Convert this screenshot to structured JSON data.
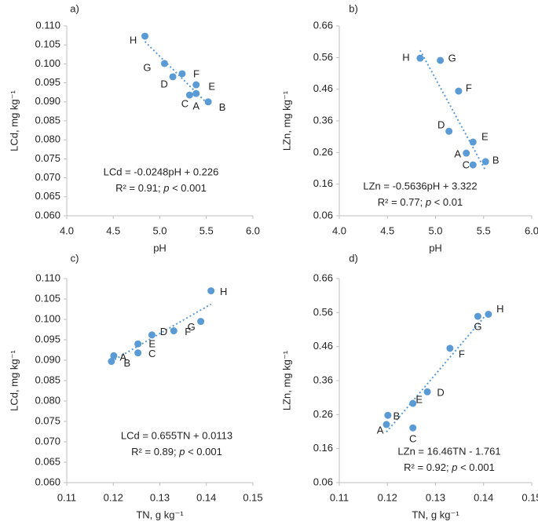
{
  "chart_data": [
    {
      "type": "scatter",
      "panel_label": "a)",
      "x_label": "pH",
      "y_label": "LCd, mg kg⁻¹",
      "color": "#5b9bd5",
      "trendline": true,
      "xlim": [
        4,
        6
      ],
      "xticks": [
        {
          "value": 4,
          "label": "4.0"
        },
        4.5,
        {
          "value": 5,
          "label": "5.0"
        },
        5.5,
        {
          "value": 6,
          "label": "6.0"
        }
      ],
      "ylim": [
        0.06,
        0.11
      ],
      "yticks": [
        {
          "value": 0.06,
          "label": "0.060"
        },
        0.065,
        {
          "value": 0.07,
          "label": "0.070"
        },
        0.075,
        {
          "value": 0.08,
          "label": "0.080"
        },
        0.085,
        {
          "value": 0.09,
          "label": "0.090"
        },
        0.095,
        {
          "value": 0.1,
          "label": "0.100"
        },
        0.105,
        {
          "value": 0.11,
          "label": "0.110"
        }
      ],
      "labels": [
        "H",
        "G",
        "D",
        "F",
        "E",
        "C",
        "A",
        "B"
      ],
      "x": [
        4.84,
        5.05,
        5.14,
        5.24,
        5.39,
        5.32,
        5.39,
        5.52
      ],
      "values": [
        0.1073,
        0.1001,
        0.0966,
        0.0974,
        0.0945,
        0.0918,
        0.0922,
        0.09
      ],
      "equation": "LCd = -0.0248pH + 0.226",
      "r2_text": "R² = 0.91; ",
      "p_text": "p",
      "p_rest": " < 0.001"
    },
    {
      "type": "scatter",
      "panel_label": "b)",
      "x_label": "pH",
      "y_label": "LZn, mg kg⁻¹",
      "color": "#5b9bd5",
      "trendline": true,
      "xlim": [
        4,
        6
      ],
      "xticks": [
        {
          "value": 4,
          "label": "4.0"
        },
        4.5,
        {
          "value": 5,
          "label": "5.0"
        },
        5.5,
        {
          "value": 6,
          "label": "6.0"
        }
      ],
      "ylim": [
        0.06,
        0.66
      ],
      "yticks": [
        0.06,
        0.16,
        0.26,
        0.36,
        0.46,
        0.56,
        0.66
      ],
      "labels": [
        "H",
        "G",
        "F",
        "D",
        "E",
        "A",
        "C",
        "B"
      ],
      "x": [
        4.84,
        5.05,
        5.24,
        5.14,
        5.39,
        5.32,
        5.39,
        5.52
      ],
      "values": [
        0.558,
        0.551,
        0.454,
        0.327,
        0.293,
        0.258,
        0.221,
        0.231
      ],
      "equation": "LZn = -0.5636pH + 3.322",
      "r2_text": "R² = 0.77; ",
      "p_text": "p",
      "p_rest": " < 0.01"
    },
    {
      "type": "scatter",
      "panel_label": "c)",
      "x_label": "TN, g kg⁻¹",
      "y_label": "LCd, mg kg⁻¹",
      "color": "#5b9bd5",
      "trendline": true,
      "xlim": [
        0.11,
        0.15
      ],
      "xticks": [
        0.11,
        0.12,
        0.13,
        0.14,
        0.15
      ],
      "ylim": [
        0.06,
        0.11
      ],
      "yticks": [
        {
          "value": 0.06,
          "label": "0.060"
        },
        0.065,
        {
          "value": 0.07,
          "label": "0.070"
        },
        0.075,
        {
          "value": 0.08,
          "label": "0.080"
        },
        0.085,
        {
          "value": 0.09,
          "label": "0.090"
        },
        0.095,
        {
          "value": 0.1,
          "label": "0.100"
        },
        0.105,
        {
          "value": 0.11,
          "label": "0.110"
        }
      ],
      "labels": [
        "H",
        "G",
        "F",
        "D",
        "E",
        "C",
        "A",
        "B"
      ],
      "x": [
        0.141,
        0.1388,
        0.133,
        0.1283,
        0.1253,
        0.1253,
        0.1201,
        0.1196
      ],
      "values": [
        0.107,
        0.0995,
        0.0972,
        0.0962,
        0.094,
        0.0918,
        0.0911,
        0.0897
      ],
      "equation": "LCd = 0.655TN + 0.0113",
      "r2_text": "R² = 0.89; ",
      "p_text": "p",
      "p_rest": " < 0.001"
    },
    {
      "type": "scatter",
      "panel_label": "d)",
      "x_label": "TN, g kg⁻¹",
      "y_label": "LZn, mg kg⁻¹",
      "color": "#5b9bd5",
      "trendline": true,
      "xlim": [
        0.11,
        0.15
      ],
      "xticks": [
        0.11,
        0.12,
        0.13,
        0.14,
        0.15
      ],
      "ylim": [
        0.06,
        0.66
      ],
      "yticks": [
        0.06,
        0.16,
        0.26,
        0.36,
        0.46,
        0.56,
        0.66
      ],
      "labels": [
        "H",
        "G",
        "F",
        "D",
        "E",
        "B",
        "A",
        "C"
      ],
      "x": [
        0.141,
        0.1388,
        0.133,
        0.1283,
        0.1253,
        0.1201,
        0.1198,
        0.1253
      ],
      "values": [
        0.555,
        0.549,
        0.455,
        0.327,
        0.293,
        0.258,
        0.231,
        0.221
      ],
      "equation": "LZn = 16.46TN - 1.761",
      "r2_text": "R² = 0.92; ",
      "p_text": "p",
      "p_rest": " < 0.001"
    }
  ]
}
